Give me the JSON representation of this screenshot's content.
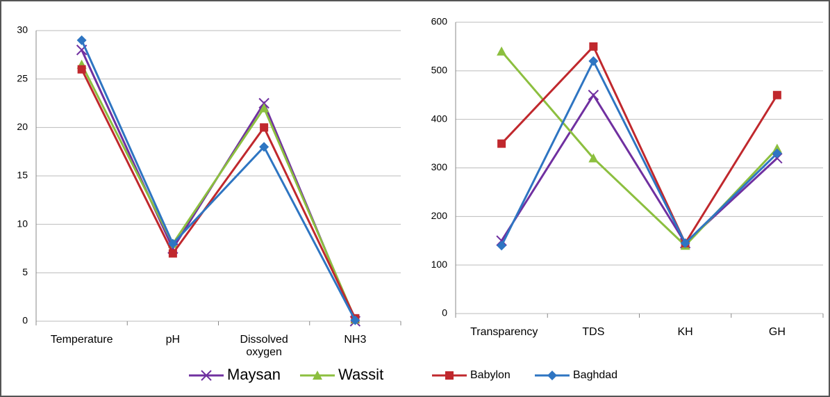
{
  "chart_data": [
    {
      "type": "line",
      "categories": [
        "Temperature",
        "pH",
        "Dissolved oxygen",
        "NH3"
      ],
      "ylim": [
        0,
        30
      ],
      "yticks": [
        0,
        5,
        10,
        15,
        20,
        25,
        30
      ],
      "grid": true,
      "series": [
        {
          "name": "Maysan",
          "color": "#7030a0",
          "marker": "x",
          "values": [
            28,
            7.5,
            22.5,
            0
          ]
        },
        {
          "name": "Wassit",
          "color": "#8cbf3f",
          "marker": "triangle",
          "values": [
            26.5,
            8,
            22,
            0.2
          ]
        },
        {
          "name": "Babylon",
          "color": "#c0282d",
          "marker": "square",
          "values": [
            26,
            7,
            20,
            0.3
          ]
        },
        {
          "name": "Baghdad",
          "color": "#2e75c2",
          "marker": "diamond",
          "values": [
            29,
            8,
            18,
            0.1
          ]
        }
      ]
    },
    {
      "type": "line",
      "categories": [
        "Transparency",
        "TDS",
        "KH",
        "GH"
      ],
      "ylim": [
        0,
        600
      ],
      "yticks": [
        0,
        100,
        200,
        300,
        400,
        500,
        600
      ],
      "grid": true,
      "series": [
        {
          "name": "Maysan",
          "color": "#7030a0",
          "marker": "x",
          "values": [
            150,
            450,
            145,
            320
          ]
        },
        {
          "name": "Wassit",
          "color": "#8cbf3f",
          "marker": "triangle",
          "values": [
            540,
            320,
            140,
            340
          ]
        },
        {
          "name": "Babylon",
          "color": "#c0282d",
          "marker": "square",
          "values": [
            350,
            550,
            145,
            450
          ]
        },
        {
          "name": "Baghdad",
          "color": "#2e75c2",
          "marker": "diamond",
          "values": [
            140,
            520,
            145,
            330
          ]
        }
      ]
    }
  ]
}
